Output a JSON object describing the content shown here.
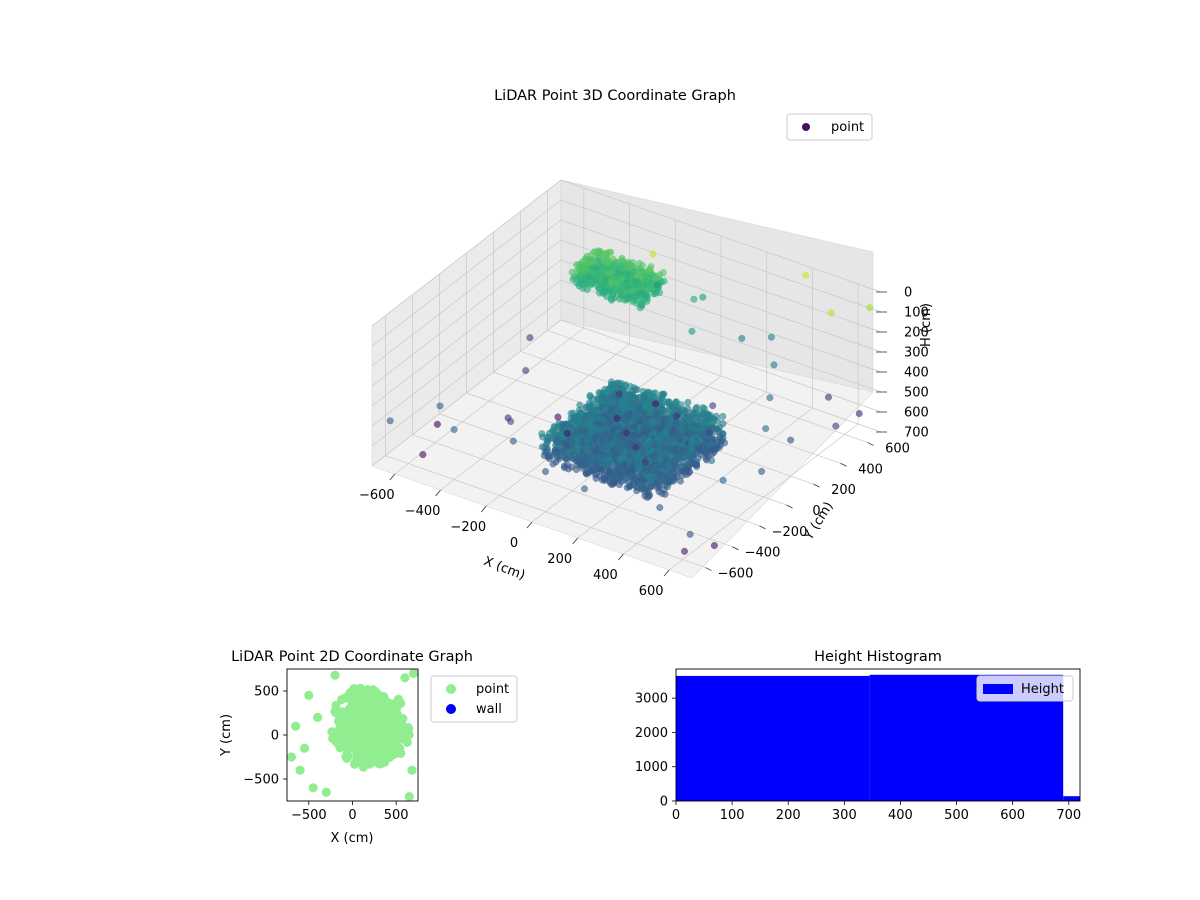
{
  "figure": {
    "chart_3d_title": "LiDAR Point 3D Coordinate Graph",
    "chart_2d_title": "LiDAR Point 2D Coordinate Graph",
    "histogram_title": "Height Histogram"
  },
  "chart_data": [
    {
      "type": "scatter",
      "projection": "3d",
      "title": "LiDAR Point 3D Coordinate Graph",
      "xlabel": "X (cm)",
      "ylabel": "Y (cm)",
      "zlabel": "H (cm)",
      "xlim": [
        -700,
        700
      ],
      "ylim": [
        -700,
        700
      ],
      "zlim": [
        700,
        0
      ],
      "z_axis_inverted": true,
      "x_ticks": [
        -600,
        -400,
        -200,
        0,
        200,
        400,
        600
      ],
      "y_ticks": [
        -600,
        -400,
        -200,
        0,
        200,
        400,
        600
      ],
      "z_ticks": [
        0,
        100,
        200,
        300,
        400,
        500,
        600,
        700
      ],
      "x_tick_labels": [
        "−600",
        "−400",
        "−200",
        "0",
        "200",
        "400",
        "600"
      ],
      "y_tick_labels": [
        "−600",
        "−400",
        "−200",
        "0",
        "200",
        "400",
        "600"
      ],
      "z_tick_labels": [
        "0",
        "100",
        "200",
        "300",
        "400",
        "500",
        "600",
        "700"
      ],
      "colormap": "viridis",
      "legend": {
        "placement": "top-right",
        "entries": [
          {
            "label": "point",
            "color": "#440f64"
          }
        ]
      },
      "series": [
        {
          "name": "point",
          "clusters": [
            {
              "x": [
                -50,
                450
              ],
              "y": [
                -550,
                0
              ],
              "h": [
                350,
                500
              ],
              "count": 2600
            },
            {
              "x": [
                -450,
                -150
              ],
              "y": [
                350,
                550
              ],
              "h": [
                150,
                250
              ],
              "count": 500
            }
          ],
          "outliers": [
            [
              -650,
              -650,
              480
            ],
            [
              -550,
              -450,
              470
            ],
            [
              -400,
              -600,
              450
            ],
            [
              -300,
              -350,
              500
            ],
            [
              -200,
              -500,
              480
            ],
            [
              -100,
              -300,
              460
            ],
            [
              0,
              -600,
              500
            ],
            [
              100,
              -450,
              470
            ],
            [
              200,
              -650,
              480
            ],
            [
              300,
              -200,
              440
            ],
            [
              400,
              -500,
              470
            ],
            [
              500,
              -600,
              480
            ],
            [
              600,
              -300,
              460
            ],
            [
              650,
              -100,
              500
            ],
            [
              550,
              100,
              430
            ],
            [
              450,
              300,
              420
            ],
            [
              350,
              500,
              400
            ],
            [
              250,
              650,
              380
            ],
            [
              150,
              600,
              400
            ],
            [
              -50,
              650,
              300
            ],
            [
              -250,
              650,
              320
            ],
            [
              600,
              200,
              520
            ],
            [
              650,
              450,
              560
            ],
            [
              500,
              650,
              580
            ],
            [
              640,
              640,
              600
            ],
            [
              680,
              -680,
              500
            ],
            [
              300,
              100,
              550
            ],
            [
              200,
              300,
              560
            ],
            [
              100,
              200,
              600
            ],
            [
              0,
              0,
              620
            ],
            [
              -100,
              100,
              640
            ],
            [
              -200,
              -100,
              650
            ],
            [
              -300,
              0,
              660
            ],
            [
              -400,
              -200,
              600
            ],
            [
              -500,
              100,
              560
            ],
            [
              -600,
              300,
              540
            ],
            [
              -650,
              -300,
              680
            ],
            [
              -560,
              -560,
              660
            ],
            [
              680,
              -500,
              650
            ],
            [
              620,
              -620,
              640
            ],
            [
              200,
              -200,
              580
            ],
            [
              100,
              -100,
              600
            ],
            [
              -150,
              200,
              590
            ],
            [
              50,
              400,
              300
            ],
            [
              -30,
              550,
              250
            ],
            [
              300,
              0,
              400
            ],
            [
              450,
              -150,
              420
            ],
            [
              520,
              -250,
              420
            ],
            [
              -50,
              300,
              650
            ],
            [
              -150,
              450,
              20
            ],
            [
              600,
              500,
              40
            ],
            [
              400,
              650,
              10
            ],
            [
              680,
              650,
              60
            ]
          ]
        }
      ]
    },
    {
      "type": "scatter",
      "title": "LiDAR Point 2D Coordinate Graph",
      "xlabel": "X (cm)",
      "ylabel": "Y (cm)",
      "xlim": [
        -750,
        750
      ],
      "ylim": [
        -750,
        750
      ],
      "x_ticks": [
        -500,
        0,
        500
      ],
      "y_ticks": [
        -500,
        0,
        500
      ],
      "x_tick_labels": [
        "−500",
        "0",
        "500"
      ],
      "y_tick_labels": [
        "−500",
        "0",
        "500"
      ],
      "legend": {
        "placement": "outside-right",
        "entries": [
          {
            "label": "point",
            "color": "#90ee90"
          },
          {
            "label": "wall",
            "color": "#0000ff"
          }
        ]
      },
      "series": [
        {
          "name": "point",
          "color": "#90ee90",
          "clusters": [
            {
              "x": [
                -300,
                700
              ],
              "y": [
                -450,
                600
              ],
              "count": 650
            }
          ],
          "outliers": [
            [
              -700,
              -250
            ],
            [
              -650,
              100
            ],
            [
              -600,
              -400
            ],
            [
              -550,
              -150
            ],
            [
              -500,
              450
            ],
            [
              -450,
              -600
            ],
            [
              -400,
              200
            ],
            [
              -300,
              -650
            ],
            [
              650,
              -700
            ],
            [
              700,
              700
            ],
            [
              600,
              650
            ],
            [
              -200,
              680
            ],
            [
              680,
              -400
            ]
          ]
        },
        {
          "name": "wall",
          "color": "#0000ff",
          "points": []
        }
      ]
    },
    {
      "type": "bar",
      "subtype": "histogram",
      "title": "Height Histogram",
      "xlabel": "",
      "ylabel": "",
      "xlim": [
        0,
        720
      ],
      "ylim": [
        0,
        3850
      ],
      "x_ticks": [
        0,
        100,
        200,
        300,
        400,
        500,
        600,
        700
      ],
      "y_ticks": [
        0,
        1000,
        2000,
        3000
      ],
      "x_tick_labels": [
        "0",
        "100",
        "200",
        "300",
        "400",
        "500",
        "600",
        "700"
      ],
      "y_tick_labels": [
        "0",
        "1000",
        "2000",
        "3000"
      ],
      "legend": {
        "placement": "top-right",
        "entries": [
          {
            "label": "Height",
            "color": "#0000ff"
          }
        ]
      },
      "series": [
        {
          "name": "Height",
          "color": "#0000ff",
          "bins": [
            [
              0,
              345,
              3650
            ],
            [
              345,
              690,
              3680
            ],
            [
              690,
              720,
              140
            ]
          ]
        }
      ]
    }
  ]
}
